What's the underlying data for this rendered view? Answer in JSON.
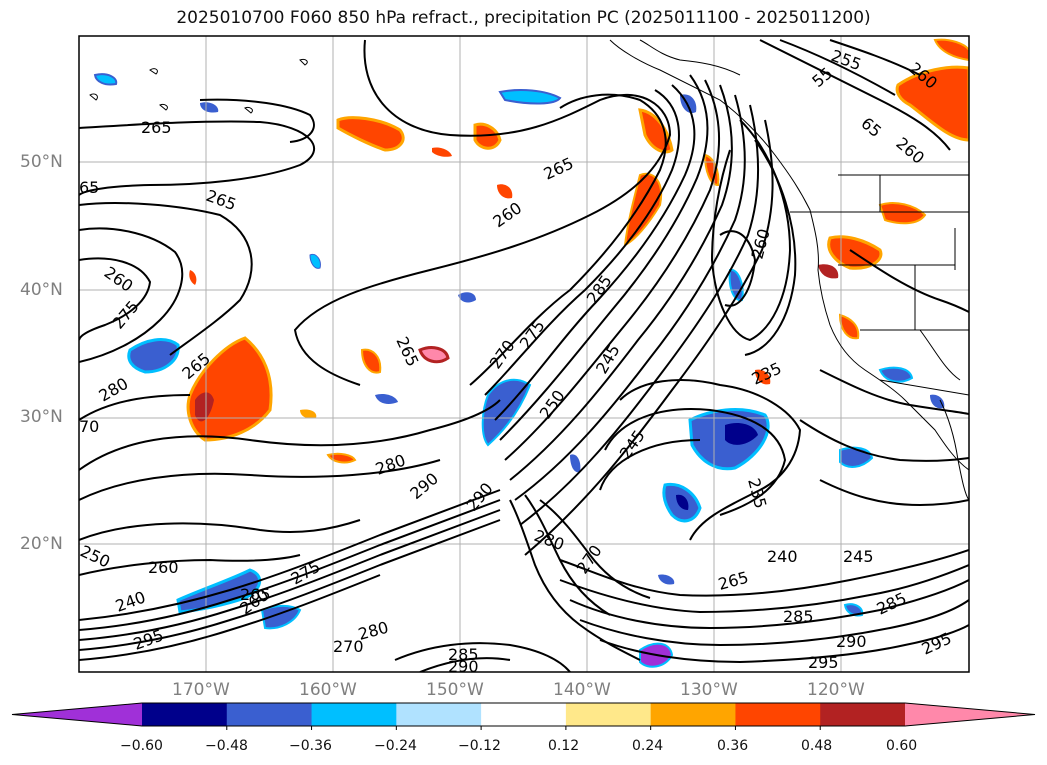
{
  "title": "2025010700 F060 850 hPa refract., precipitation PC (2025011100 - 2025011200)",
  "lat_labels": [
    "50°N",
    "40°N",
    "30°N",
    "20°N"
  ],
  "lon_labels": [
    "170°W",
    "160°W",
    "150°W",
    "140°W",
    "130°W",
    "120°W"
  ],
  "colorbar": {
    "ticks": [
      "−0.60",
      "−0.48",
      "−0.36",
      "−0.24",
      "−0.12",
      "0.12",
      "0.24",
      "0.36",
      "0.48",
      "0.60"
    ],
    "colors": [
      "#a030d8",
      "#00008b",
      "#3a5fd0",
      "#00bfff",
      "#b0e2ff",
      "#ffffff",
      "#ffe88a",
      "#ffa500",
      "#ff4500",
      "#b22222",
      "#ff88aa"
    ]
  },
  "contour_labels": [
    "265",
    "265",
    "65",
    "265",
    "260",
    "275",
    "265",
    "280",
    "70",
    "260",
    "265",
    "265",
    "260",
    "270",
    "275",
    "280",
    "285",
    "245",
    "245",
    "250",
    "260",
    "235",
    "235",
    "280",
    "290",
    "290",
    "280",
    "240",
    "245",
    "250",
    "260",
    "240",
    "295",
    "285",
    "265",
    "260",
    "270",
    "280",
    "285",
    "290",
    "295",
    "290",
    "285",
    "295",
    "255",
    "55",
    "260",
    "260",
    "65",
    "275",
    "270",
    "265",
    "240",
    "250",
    "280",
    "290",
    "275",
    "265"
  ]
}
